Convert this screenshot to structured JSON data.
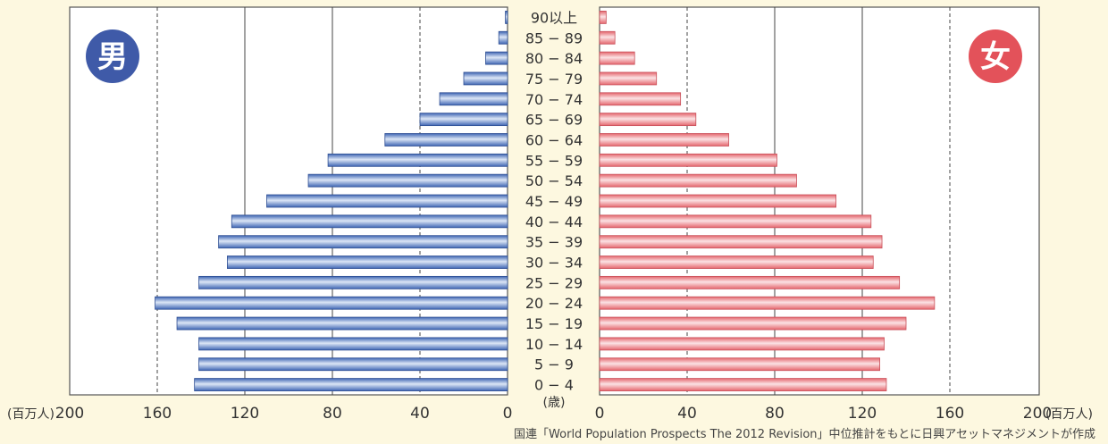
{
  "chart_data": {
    "type": "bar",
    "orientation": "horizontal-pyramid",
    "categories": [
      "0 − 4",
      "5 − 9",
      "10 − 14",
      "15 − 19",
      "20 − 24",
      "25 − 29",
      "30 − 34",
      "35 − 39",
      "40 − 44",
      "45 − 49",
      "50 − 54",
      "55 − 59",
      "60 − 64",
      "65 − 69",
      "70 − 74",
      "75 − 79",
      "80 − 84",
      "85 − 89",
      "90以上"
    ],
    "series": [
      {
        "name": "男",
        "color": "#3f66b4",
        "values": [
          143,
          141,
          141,
          151,
          161,
          141,
          128,
          132,
          126,
          110,
          91,
          82,
          56,
          40,
          31,
          20,
          10,
          4,
          1
        ]
      },
      {
        "name": "女",
        "color": "#e5676e",
        "values": [
          131,
          128,
          130,
          140,
          153,
          137,
          125,
          129,
          124,
          108,
          90,
          81,
          59,
          44,
          37,
          26,
          16,
          7,
          3
        ]
      }
    ],
    "male_axis": {
      "ticks": [
        200,
        160,
        120,
        80,
        40,
        0
      ],
      "unit": "(百万人)"
    },
    "female_axis": {
      "ticks": [
        0,
        40,
        80,
        120,
        160,
        200
      ],
      "unit": "(百万人)"
    },
    "age_unit": "(歳)",
    "xlim": [
      0,
      200
    ],
    "grid": "dashed vertical lines at 40 and 160",
    "source": "国連「World Population Prospects  The 2012 Revision」中位推計をもとに日興アセットマネジメントが作成"
  },
  "badges": {
    "male": {
      "text": "男",
      "color": "#3f5aa8"
    },
    "female": {
      "text": "女",
      "color": "#e3525a"
    }
  }
}
